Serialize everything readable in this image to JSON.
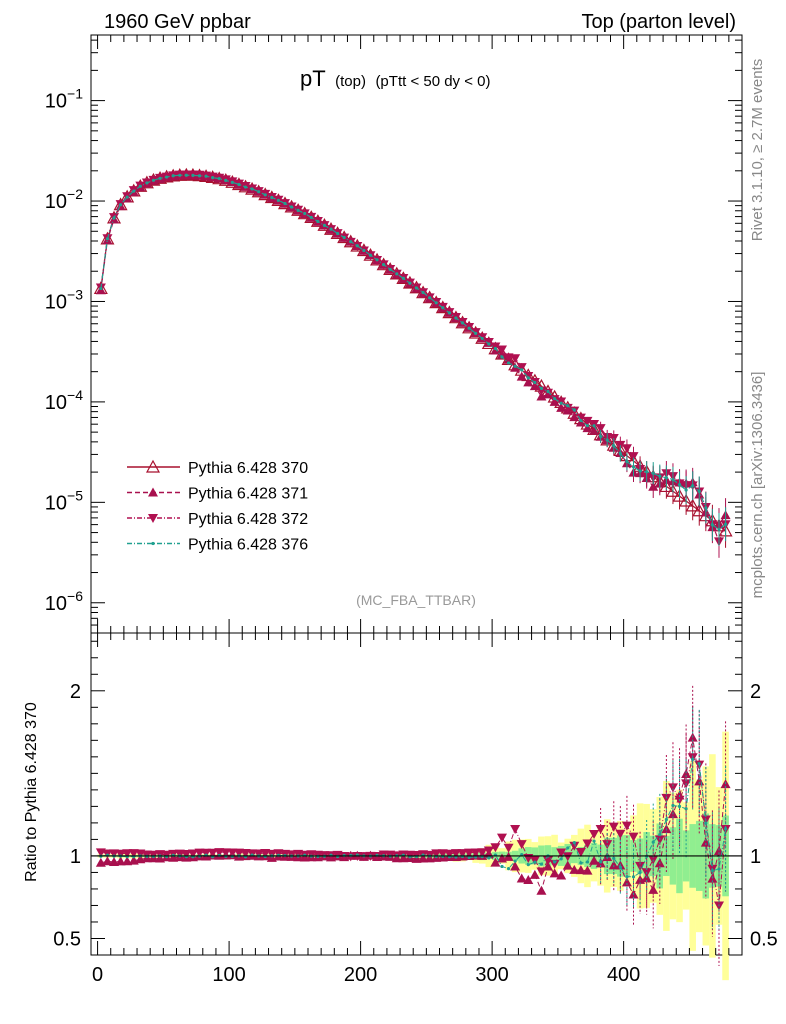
{
  "header": {
    "left": "1960 GeV ppbar",
    "right": "Top (parton level)"
  },
  "side_labels": {
    "rivet": "Rivet 3.1.10, ≥ 2.7M events",
    "mcplots": "mcplots.cern.ch [arXiv:1306.3436]"
  },
  "plot_title": {
    "main": "pT",
    "sub": "(top)",
    "cut": "(pTtt < 50 dy < 0)"
  },
  "watermark": "(MC_FBA_TTBAR)",
  "ratio_ylabel": "Ratio to Pythia 6.428 370",
  "legend": [
    {
      "label": "Pythia 6.428 370",
      "color": "#a8102e",
      "marker": "triangle-up-open",
      "dash": "solid"
    },
    {
      "label": "Pythia 6.428 371",
      "color": "#a8104e",
      "marker": "triangle-up-filled",
      "dash": "dashed"
    },
    {
      "label": "Pythia 6.428 372",
      "color": "#b01050",
      "marker": "triangle-down-filled",
      "dash": "dashdot"
    },
    {
      "label": "Pythia 6.428 376",
      "color": "#20a090",
      "marker": "dot",
      "dash": "dashdot"
    }
  ],
  "chart_data": {
    "type": "line",
    "log_y": true,
    "xlim": [
      -5,
      490
    ],
    "ylim": [
      5e-07,
      0.45
    ],
    "x_ticks": [
      0,
      100,
      200,
      300,
      400
    ],
    "x_tick_labels": [
      "0",
      "100",
      "200",
      "300",
      "400"
    ],
    "y_ticks": [
      1e-06,
      1e-05,
      0.0001,
      0.001,
      0.01,
      0.1
    ],
    "y_tick_labels": [
      {
        "base": "10",
        "exp": "−6"
      },
      {
        "base": "10",
        "exp": "−5"
      },
      {
        "base": "10",
        "exp": "−4"
      },
      {
        "base": "10",
        "exp": "−3"
      },
      {
        "base": "10",
        "exp": "−2"
      },
      {
        "base": "10",
        "exp": "−1"
      }
    ],
    "x_bin_width": 5,
    "x_start": 2.5,
    "x_end": 477.5,
    "shape_model": {
      "description_points": [
        [
          2.5,
          0.00135
        ],
        [
          7.5,
          0.0042
        ],
        [
          12.5,
          0.0068
        ],
        [
          17.5,
          0.0092
        ],
        [
          22.5,
          0.011
        ],
        [
          30,
          0.0135
        ],
        [
          40,
          0.0158
        ],
        [
          50,
          0.0172
        ],
        [
          60,
          0.018
        ],
        [
          70,
          0.0182
        ],
        [
          80,
          0.0178
        ],
        [
          90,
          0.017
        ],
        [
          100,
          0.0158
        ],
        [
          120,
          0.0128
        ],
        [
          140,
          0.0098
        ],
        [
          160,
          0.0072
        ],
        [
          180,
          0.005
        ],
        [
          200,
          0.0034
        ],
        [
          220,
          0.0022
        ],
        [
          240,
          0.00145
        ],
        [
          260,
          0.00092
        ],
        [
          280,
          0.00058
        ],
        [
          300,
          0.00036
        ],
        [
          320,
          0.00022
        ],
        [
          340,
          0.000135
        ],
        [
          360,
          8.2e-05
        ],
        [
          380,
          5e-05
        ],
        [
          400,
          3.1e-05
        ],
        [
          420,
          1.9e-05
        ],
        [
          440,
          1.22e-05
        ],
        [
          460,
          7.8e-06
        ],
        [
          477.5,
          5.2e-06
        ]
      ]
    },
    "ratio": {
      "ylim": [
        0.4,
        2.35
      ],
      "y_ticks": [
        0.5,
        1,
        2
      ],
      "y_tick_labels": [
        "0.5",
        "1",
        "2"
      ],
      "series_ratio_points": {
        "Pythia 6.428 371": [
          [
            2.5,
            0.96
          ],
          [
            50,
            0.99
          ],
          [
            100,
            1.0
          ],
          [
            150,
            0.99
          ],
          [
            200,
            1.0
          ],
          [
            250,
            0.98
          ],
          [
            300,
            1.01
          ],
          [
            330,
            0.83
          ],
          [
            360,
            0.93
          ],
          [
            390,
            1.05
          ],
          [
            405,
            0.82
          ],
          [
            425,
            0.85
          ],
          [
            440,
            1.35
          ],
          [
            450,
            1.62
          ],
          [
            455,
            1.7
          ],
          [
            460,
            1.1
          ],
          [
            470,
            0.78
          ],
          [
            477.5,
            1.45
          ]
        ],
        "Pythia 6.428 372": [
          [
            2.5,
            1.02
          ],
          [
            50,
            1.01
          ],
          [
            100,
            1.02
          ],
          [
            150,
            1.01
          ],
          [
            200,
            1.0
          ],
          [
            250,
            1.01
          ],
          [
            300,
            1.03
          ],
          [
            320,
            1.12
          ],
          [
            340,
            0.94
          ],
          [
            370,
            1.05
          ],
          [
            400,
            1.18
          ],
          [
            420,
            0.88
          ],
          [
            435,
            1.45
          ],
          [
            445,
            1.25
          ],
          [
            455,
            1.72
          ],
          [
            465,
            0.98
          ],
          [
            472,
            0.65
          ],
          [
            477.5,
            1.2
          ]
        ],
        "Pythia 6.428 376": [
          [
            2.5,
            1.0
          ],
          [
            50,
            1.0
          ],
          [
            100,
            1.0
          ],
          [
            150,
            1.0
          ],
          [
            200,
            1.0
          ],
          [
            250,
            1.0
          ],
          [
            300,
            0.99
          ],
          [
            330,
            0.95
          ],
          [
            360,
            1.02
          ],
          [
            380,
            1.04
          ],
          [
            410,
            0.88
          ],
          [
            425,
            1.1
          ],
          [
            440,
            1.28
          ],
          [
            450,
            1.35
          ],
          [
            455,
            1.8
          ],
          [
            465,
            1.05
          ],
          [
            470,
            0.9
          ],
          [
            477.5,
            1.1
          ]
        ]
      },
      "bands": {
        "yellow_halfwidth": [
          [
            2.5,
            0.012
          ],
          [
            200,
            0.015
          ],
          [
            280,
            0.03
          ],
          [
            320,
            0.08
          ],
          [
            360,
            0.12
          ],
          [
            400,
            0.22
          ],
          [
            430,
            0.35
          ],
          [
            460,
            0.5
          ],
          [
            477.5,
            0.6
          ]
        ],
        "green_halfwidth": [
          [
            2.5,
            0.006
          ],
          [
            200,
            0.008
          ],
          [
            280,
            0.015
          ],
          [
            320,
            0.04
          ],
          [
            360,
            0.06
          ],
          [
            400,
            0.1
          ],
          [
            430,
            0.16
          ],
          [
            460,
            0.22
          ],
          [
            477.5,
            0.25
          ]
        ]
      }
    }
  }
}
